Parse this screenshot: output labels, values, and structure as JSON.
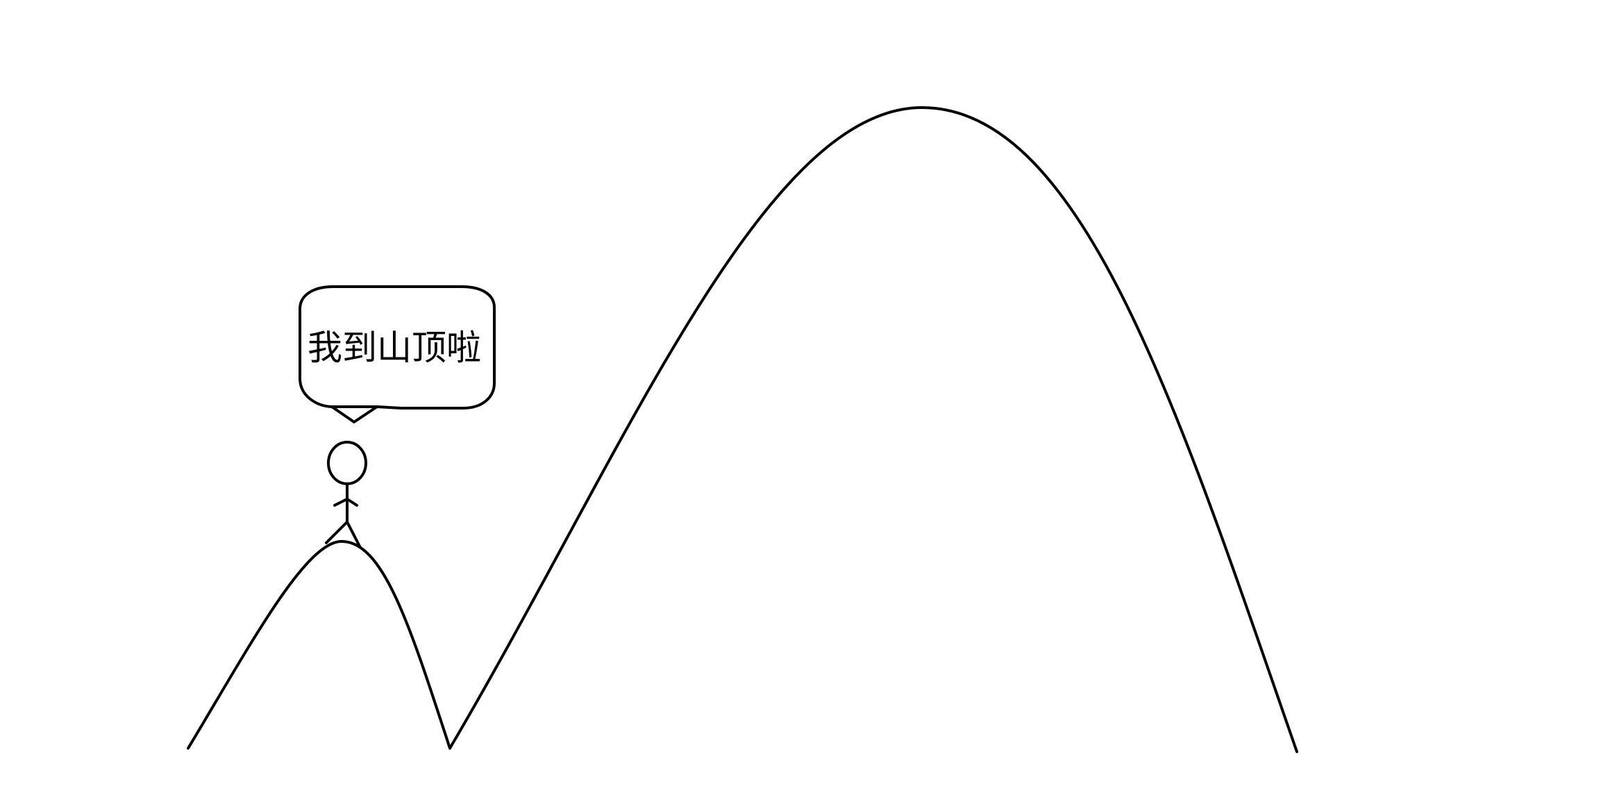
{
  "speech_bubble": {
    "text": "我到山顶啦"
  },
  "colors": {
    "background": "#ffffff",
    "line": "#000000"
  },
  "figure": {
    "description_icon": "stick-figure-icon"
  }
}
